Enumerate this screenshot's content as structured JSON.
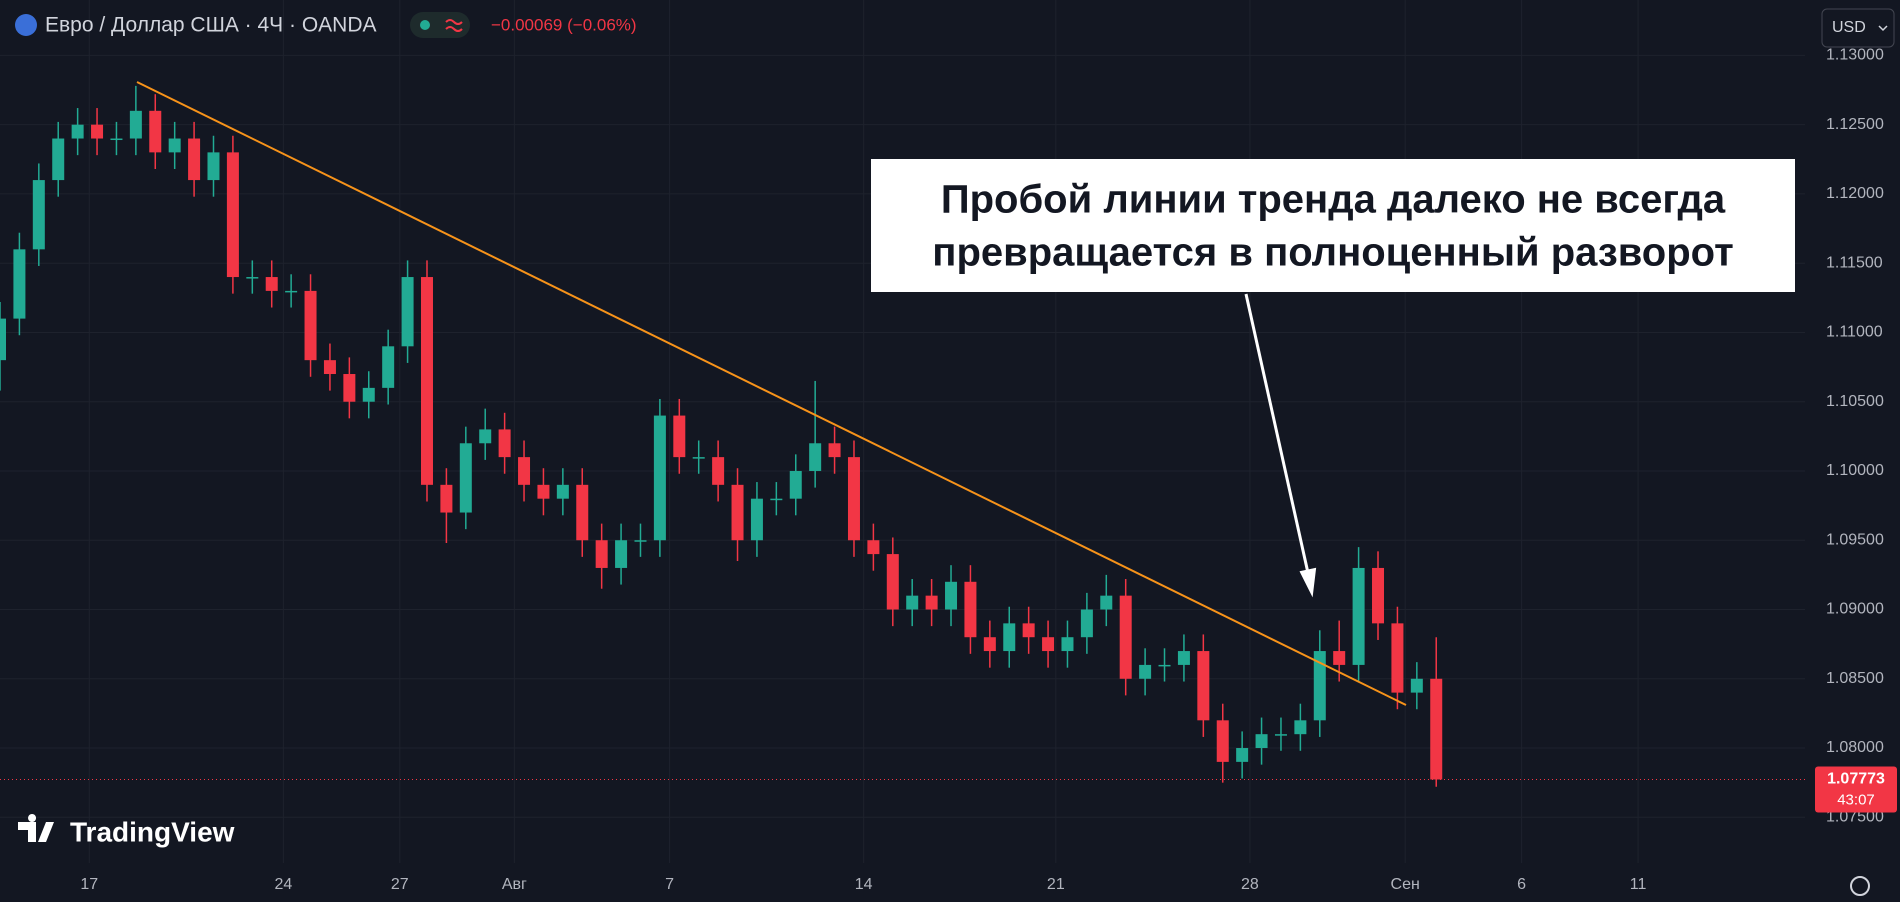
{
  "header": {
    "symbol": "Евро / Доллар США · 4Ч · OANDA",
    "change": "−0.00069 (−0.06%)",
    "currency": "USD",
    "countdown": "43:07",
    "logo": "TradingView"
  },
  "chart_data": {
    "type": "candlestick",
    "annotation": [
      "Пробой линии тренда далеко не всегда",
      "превращается в полноценный разворот"
    ],
    "up_color": "#22ab94",
    "down_color": "#f23645",
    "grid": true,
    "xlim": [
      0,
      93
    ],
    "xticks": [
      {
        "value": 4.6,
        "label": "17"
      },
      {
        "value": 14.6,
        "label": "24"
      },
      {
        "value": 20.6,
        "label": "27"
      },
      {
        "value": 26.5,
        "label": "Авг"
      },
      {
        "value": 34.5,
        "label": "7"
      },
      {
        "value": 44.5,
        "label": "14"
      },
      {
        "value": 54.4,
        "label": "21"
      },
      {
        "value": 64.4,
        "label": "28"
      },
      {
        "value": 72.4,
        "label": "Сен"
      },
      {
        "value": 78.4,
        "label": "6"
      },
      {
        "value": 84.4,
        "label": "11"
      }
    ],
    "ylim": [
      1.0717,
      1.134
    ],
    "yticks": [
      {
        "value": 1.075,
        "label": "1.07500"
      },
      {
        "value": 1.08,
        "label": "1.08000"
      },
      {
        "value": 1.085,
        "label": "1.08500"
      },
      {
        "value": 1.09,
        "label": "1.09000"
      },
      {
        "value": 1.095,
        "label": "1.09500"
      },
      {
        "value": 1.1,
        "label": "1.10000"
      },
      {
        "value": 1.105,
        "label": "1.10500"
      },
      {
        "value": 1.11,
        "label": "1.11000"
      },
      {
        "value": 1.115,
        "label": "1.11500"
      },
      {
        "value": 1.12,
        "label": "1.12000"
      },
      {
        "value": 1.125,
        "label": "1.12500"
      },
      {
        "value": 1.13,
        "label": "1.13000"
      }
    ],
    "open": [
      1.108,
      1.111,
      1.116,
      1.121,
      1.124,
      1.125,
      1.124,
      1.124,
      1.126,
      1.123,
      1.124,
      1.121,
      1.123,
      1.114,
      1.114,
      1.113,
      1.113,
      1.108,
      1.107,
      1.105,
      1.106,
      1.109,
      1.114,
      1.099,
      1.097,
      1.102,
      1.103,
      1.101,
      1.099,
      1.098,
      1.099,
      1.095,
      1.093,
      1.095,
      1.095,
      1.104,
      1.101,
      1.101,
      1.099,
      1.095,
      1.098,
      1.098,
      1.1,
      1.102,
      1.101,
      1.095,
      1.094,
      1.09,
      1.091,
      1.09,
      1.092,
      1.088,
      1.087,
      1.089,
      1.088,
      1.087,
      1.088,
      1.09,
      1.091,
      1.085,
      1.086,
      1.086,
      1.087,
      1.082,
      1.079,
      1.08,
      1.081,
      1.081,
      1.082,
      1.087,
      1.086,
      1.093,
      1.089,
      1.084,
      1.085
    ],
    "high": [
      1.1122,
      1.1172,
      1.1222,
      1.1252,
      1.1262,
      1.1262,
      1.1252,
      1.1278,
      1.1272,
      1.1252,
      1.1252,
      1.1242,
      1.1242,
      1.1152,
      1.1152,
      1.1142,
      1.1142,
      1.1092,
      1.1082,
      1.1072,
      1.1102,
      1.1152,
      1.1152,
      1.1002,
      1.1032,
      1.1045,
      1.1042,
      1.1022,
      1.1002,
      1.1002,
      1.1002,
      1.0962,
      1.0962,
      1.0962,
      1.1052,
      1.1052,
      1.1022,
      1.1022,
      1.1002,
      1.0992,
      1.0992,
      1.1012,
      1.1065,
      1.1032,
      1.1022,
      1.0962,
      1.0952,
      1.0922,
      1.0922,
      1.0932,
      1.0932,
      1.0892,
      1.0902,
      1.0902,
      1.0892,
      1.0892,
      1.0912,
      1.0925,
      1.0922,
      1.0872,
      1.0872,
      1.0882,
      1.0882,
      1.0832,
      1.0812,
      1.0822,
      1.0822,
      1.0832,
      1.0885,
      1.0892,
      1.0945,
      1.0942,
      1.0902,
      1.0862,
      1.088
    ],
    "low": [
      1.1058,
      1.1098,
      1.1148,
      1.1198,
      1.1228,
      1.1228,
      1.1228,
      1.1228,
      1.1218,
      1.1218,
      1.1198,
      1.1198,
      1.1128,
      1.1128,
      1.1118,
      1.1118,
      1.1068,
      1.1058,
      1.1038,
      1.1038,
      1.1048,
      1.1078,
      1.0978,
      1.0948,
      1.0958,
      1.1008,
      1.0998,
      1.0978,
      1.0968,
      1.0968,
      1.0938,
      1.0915,
      1.0918,
      1.0938,
      1.0938,
      1.0998,
      1.0998,
      1.0978,
      1.0935,
      1.0938,
      1.0968,
      1.0968,
      1.0988,
      1.0998,
      1.0938,
      1.0928,
      1.0888,
      1.0888,
      1.0888,
      1.0888,
      1.0868,
      1.0858,
      1.0858,
      1.0868,
      1.0858,
      1.0858,
      1.0868,
      1.0888,
      1.0838,
      1.0838,
      1.0848,
      1.0848,
      1.0808,
      1.0775,
      1.0778,
      1.0788,
      1.0798,
      1.0798,
      1.0808,
      1.0848,
      1.0848,
      1.0878,
      1.0828,
      1.0828,
      1.0772
    ],
    "close": [
      1.111,
      1.116,
      1.121,
      1.124,
      1.125,
      1.124,
      1.124,
      1.126,
      1.123,
      1.124,
      1.121,
      1.123,
      1.114,
      1.114,
      1.113,
      1.113,
      1.108,
      1.107,
      1.105,
      1.106,
      1.109,
      1.114,
      1.099,
      1.097,
      1.102,
      1.103,
      1.101,
      1.099,
      1.098,
      1.099,
      1.095,
      1.093,
      1.095,
      1.095,
      1.104,
      1.101,
      1.101,
      1.099,
      1.095,
      1.098,
      1.098,
      1.1,
      1.102,
      1.101,
      1.095,
      1.094,
      1.09,
      1.091,
      1.09,
      1.092,
      1.088,
      1.087,
      1.089,
      1.088,
      1.087,
      1.088,
      1.09,
      1.091,
      1.085,
      1.086,
      1.086,
      1.087,
      1.082,
      1.079,
      1.08,
      1.081,
      1.081,
      1.082,
      1.087,
      1.086,
      1.093,
      1.089,
      1.084,
      1.085,
      1.07773
    ]
  }
}
